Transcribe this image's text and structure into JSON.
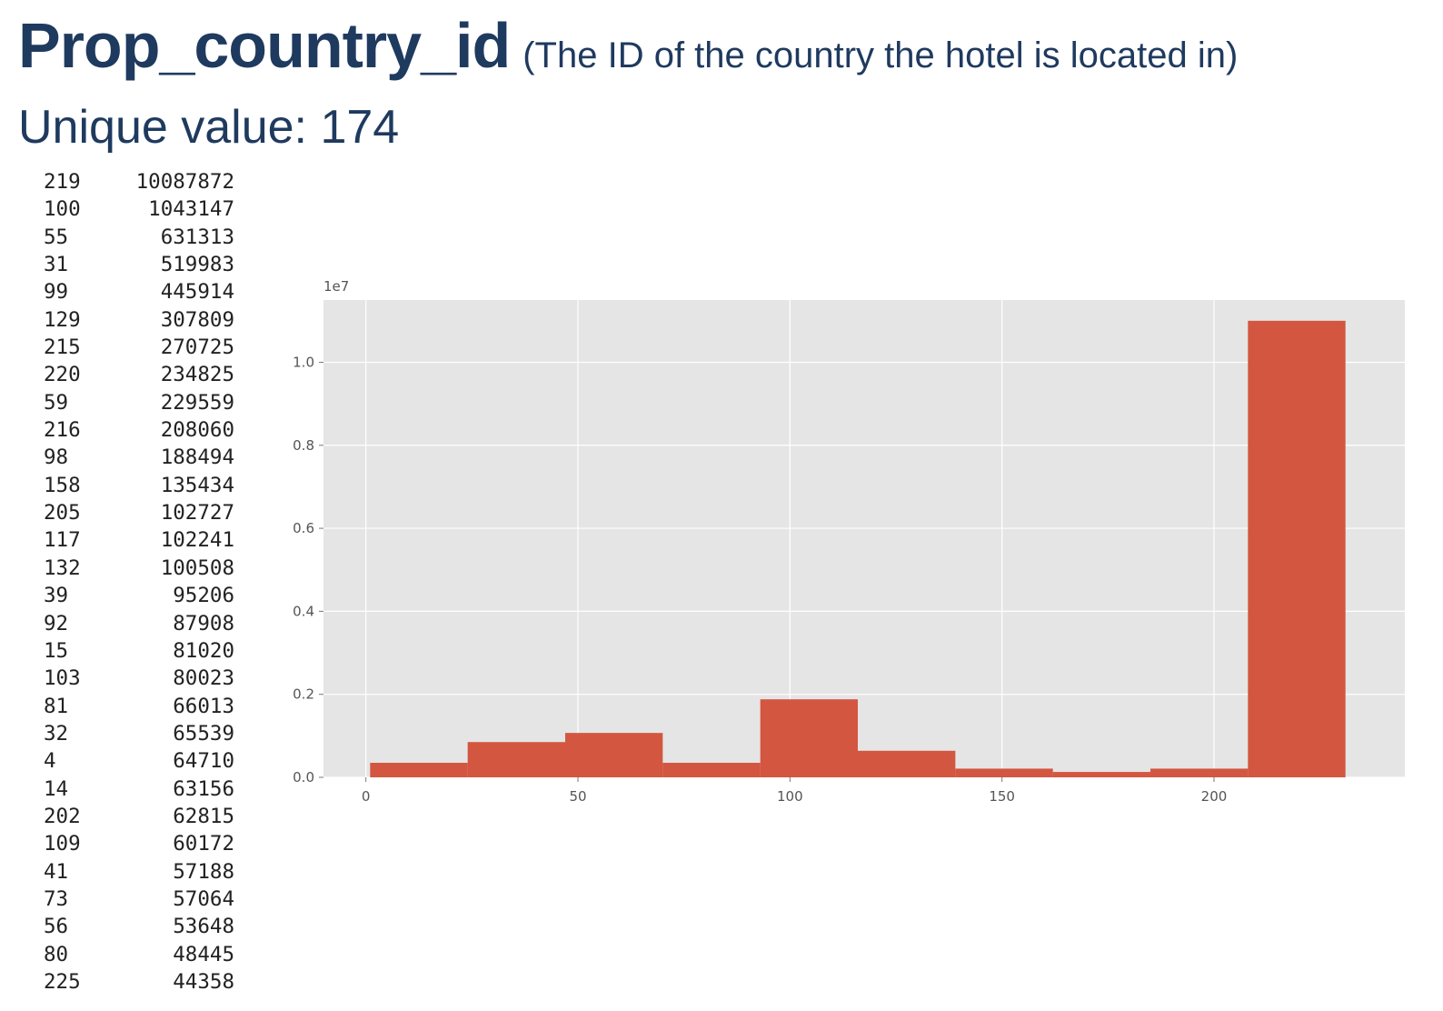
{
  "title": "Prop_country_id",
  "subtitle": "(The ID of the country the hotel is located in)",
  "unique_label": "Unique value: 174",
  "value_counts": [
    {
      "id": "219",
      "count": "10087872"
    },
    {
      "id": "100",
      "count": "1043147"
    },
    {
      "id": "55",
      "count": "631313"
    },
    {
      "id": "31",
      "count": "519983"
    },
    {
      "id": "99",
      "count": "445914"
    },
    {
      "id": "129",
      "count": "307809"
    },
    {
      "id": "215",
      "count": "270725"
    },
    {
      "id": "220",
      "count": "234825"
    },
    {
      "id": "59",
      "count": "229559"
    },
    {
      "id": "216",
      "count": "208060"
    },
    {
      "id": "98",
      "count": "188494"
    },
    {
      "id": "158",
      "count": "135434"
    },
    {
      "id": "205",
      "count": "102727"
    },
    {
      "id": "117",
      "count": "102241"
    },
    {
      "id": "132",
      "count": "100508"
    },
    {
      "id": "39",
      "count": "95206"
    },
    {
      "id": "92",
      "count": "87908"
    },
    {
      "id": "15",
      "count": "81020"
    },
    {
      "id": "103",
      "count": "80023"
    },
    {
      "id": "81",
      "count": "66013"
    },
    {
      "id": "32",
      "count": "65539"
    },
    {
      "id": "4",
      "count": "64710"
    },
    {
      "id": "14",
      "count": "63156"
    },
    {
      "id": "202",
      "count": "62815"
    },
    {
      "id": "109",
      "count": "60172"
    },
    {
      "id": "41",
      "count": "57188"
    },
    {
      "id": "73",
      "count": "57064"
    },
    {
      "id": "56",
      "count": "53648"
    },
    {
      "id": "80",
      "count": "48445"
    },
    {
      "id": "225",
      "count": "44358"
    }
  ],
  "chart_data": {
    "type": "bar",
    "bin_edges": [
      1,
      24,
      47,
      70,
      93,
      116,
      139,
      162,
      185,
      208,
      231
    ],
    "values": [
      0.035,
      0.085,
      0.107,
      0.035,
      0.188,
      0.064,
      0.021,
      0.013,
      0.021,
      1.1
    ],
    "scale_label": "1e7",
    "xlim": [
      -10,
      245
    ],
    "ylim": [
      0,
      1.15
    ],
    "xticks": [
      "0",
      "50",
      "100",
      "150",
      "200"
    ],
    "xtick_values": [
      0,
      50,
      100,
      150,
      200
    ],
    "yticks": [
      "0.0",
      "0.2",
      "0.4",
      "0.6",
      "0.8",
      "1.0"
    ],
    "ytick_values": [
      0,
      0.2,
      0.4,
      0.6,
      0.8,
      1.0
    ],
    "grid": true,
    "bar_color": "#d35640",
    "background_color": "#e5e5e5",
    "grid_color": "#ffffff"
  }
}
